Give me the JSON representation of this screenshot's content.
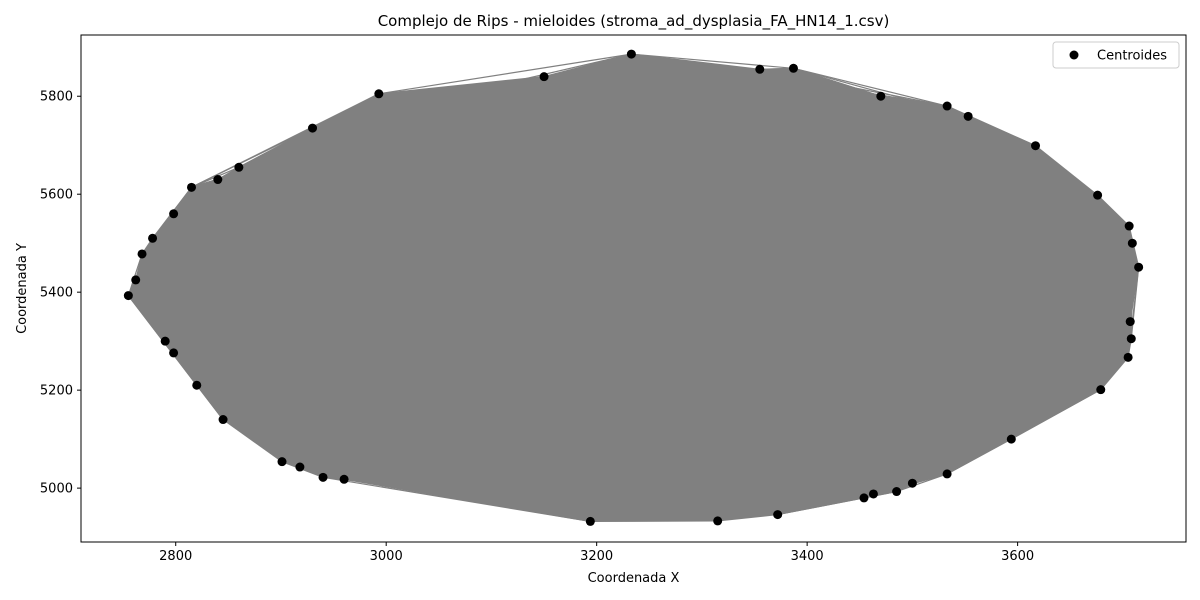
{
  "chart_data": {
    "type": "scatter",
    "title": "Complejo de Rips - mieloides (stroma_ad_dysplasia_FA_HN14_1.csv)",
    "xlabel": "Coordenada X",
    "ylabel": "Coordenada Y",
    "xlim": [
      2710,
      3760
    ],
    "ylim": [
      4890,
      5925
    ],
    "xticks": [
      2800,
      3000,
      3200,
      3400,
      3600
    ],
    "yticks": [
      5000,
      5200,
      5400,
      5600,
      5800
    ],
    "grid": false,
    "legend": {
      "position": "top-right",
      "entries": [
        "Centroides"
      ]
    },
    "colors": {
      "points": "#000000",
      "edges": "#808080"
    },
    "series": [
      {
        "name": "Centroides",
        "points": [
          [
            2755,
            5393
          ],
          [
            2768,
            5478
          ],
          [
            2762,
            5425
          ],
          [
            2778,
            5510
          ],
          [
            2798,
            5560
          ],
          [
            2815,
            5614
          ],
          [
            2840,
            5630
          ],
          [
            2860,
            5655
          ],
          [
            2930,
            5735
          ],
          [
            2993,
            5805
          ],
          [
            3150,
            5840
          ],
          [
            3233,
            5886
          ],
          [
            3355,
            5855
          ],
          [
            3387,
            5857
          ],
          [
            3470,
            5800
          ],
          [
            3533,
            5780
          ],
          [
            3553,
            5759
          ],
          [
            3617,
            5699
          ],
          [
            3676,
            5598
          ],
          [
            3706,
            5535
          ],
          [
            3709,
            5500
          ],
          [
            3715,
            5451
          ],
          [
            3707,
            5340
          ],
          [
            3708,
            5305
          ],
          [
            3705,
            5267
          ],
          [
            3679,
            5201
          ],
          [
            3594,
            5100
          ],
          [
            3533,
            5029
          ],
          [
            3500,
            5010
          ],
          [
            3485,
            4993
          ],
          [
            3463,
            4988
          ],
          [
            3454,
            4980
          ],
          [
            3372,
            4946
          ],
          [
            3315,
            4933
          ],
          [
            3194,
            4932
          ],
          [
            2960,
            5018
          ],
          [
            2940,
            5022
          ],
          [
            2918,
            5043
          ],
          [
            2901,
            5054
          ],
          [
            2845,
            5140
          ],
          [
            2820,
            5210
          ],
          [
            2798,
            5276
          ],
          [
            2790,
            5300
          ]
        ]
      }
    ]
  }
}
